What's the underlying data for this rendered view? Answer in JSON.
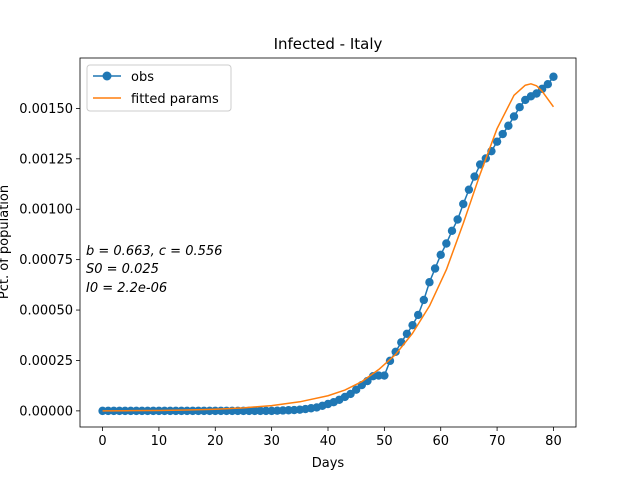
{
  "chart_data": {
    "type": "line",
    "title": "Infected - Italy",
    "xlabel": "Days",
    "ylabel": "Pct. of population",
    "xlim": [
      -4,
      84
    ],
    "ylim": [
      -8e-05,
      0.00175
    ],
    "xticks": [
      0,
      10,
      20,
      30,
      40,
      50,
      60,
      70,
      80
    ],
    "xtick_labels": [
      "0",
      "10",
      "20",
      "30",
      "40",
      "50",
      "60",
      "70",
      "80"
    ],
    "yticks": [
      0.0,
      0.00025,
      0.0005,
      0.00075,
      0.001,
      0.00125,
      0.0015
    ],
    "ytick_labels": [
      "0.00000",
      "0.00025",
      "0.00050",
      "0.00075",
      "0.00100",
      "0.00125",
      "0.00150"
    ],
    "legend_position": "upper-left",
    "annotation_lines": [
      "b = 0.663, c = 0.556",
      "S0 = 0.025",
      "I0 = 2.2e-06"
    ],
    "series": [
      {
        "name": "obs",
        "style": "line-with-circle-markers",
        "color": "#1f77b4",
        "x": [
          0,
          1,
          2,
          3,
          4,
          5,
          6,
          7,
          8,
          9,
          10,
          11,
          12,
          13,
          14,
          15,
          16,
          17,
          18,
          19,
          20,
          21,
          22,
          23,
          24,
          25,
          26,
          27,
          28,
          29,
          30,
          31,
          32,
          33,
          34,
          35,
          36,
          37,
          38,
          39,
          40,
          41,
          42,
          43,
          44,
          45,
          46,
          47,
          48,
          49,
          50,
          51,
          52,
          53,
          54,
          55,
          56,
          57,
          58,
          59,
          60,
          61,
          62,
          63,
          64,
          65,
          66,
          67,
          68,
          69,
          70,
          71,
          72,
          73,
          74,
          75,
          76,
          77,
          78,
          79,
          80
        ],
        "y": [
          0.0,
          0.0,
          0.0,
          0.0,
          0.0,
          0.0,
          0.0,
          0.0,
          0.0,
          0.0,
          0.0,
          0.0,
          0.0,
          0.0,
          0.0,
          0.0,
          0.0,
          0.0,
          0.0,
          0.0,
          0.0,
          0.0,
          0.0,
          0.0,
          0.0,
          0.0,
          0.0,
          0.0,
          0.0,
          0.0,
          0.0,
          1e-06,
          2e-06,
          3e-06,
          4e-06,
          6e-06,
          9e-06,
          1.3e-05,
          1.7e-05,
          2.5e-05,
          3.4e-05,
          4.3e-05,
          5.5e-05,
          6.9e-05,
          8.4e-05,
          0.000105,
          0.000128,
          0.000148,
          0.000172,
          0.000175,
          0.000175,
          0.000248,
          0.000293,
          0.00034,
          0.000382,
          0.000425,
          0.000476,
          0.00055,
          0.000638,
          0.000706,
          0.000774,
          0.00083,
          0.000893,
          0.000949,
          0.001026,
          0.001097,
          0.001162,
          0.001222,
          0.001252,
          0.001288,
          0.001335,
          0.001373,
          0.001414,
          0.00146,
          0.001506,
          0.001542,
          0.00156,
          0.001574,
          0.001597,
          0.00162,
          0.001657
        ]
      },
      {
        "name": "fitted params",
        "style": "line",
        "color": "#ff7f0e",
        "x": [
          0,
          5,
          10,
          15,
          20,
          25,
          30,
          35,
          40,
          43,
          46,
          49,
          52,
          55,
          58,
          61,
          64,
          67,
          70,
          73,
          75,
          76,
          77,
          78,
          80
        ],
        "y": [
          0.0,
          1e-06,
          2e-06,
          4e-06,
          8e-06,
          1.5e-05,
          2.6e-05,
          4.5e-05,
          7.5e-05,
          0.000103,
          0.000145,
          0.000205,
          0.00028,
          0.000385,
          0.00052,
          0.0007,
          0.00093,
          0.001175,
          0.0014,
          0.001565,
          0.001615,
          0.001622,
          0.001612,
          0.001585,
          0.001508
        ]
      }
    ]
  }
}
